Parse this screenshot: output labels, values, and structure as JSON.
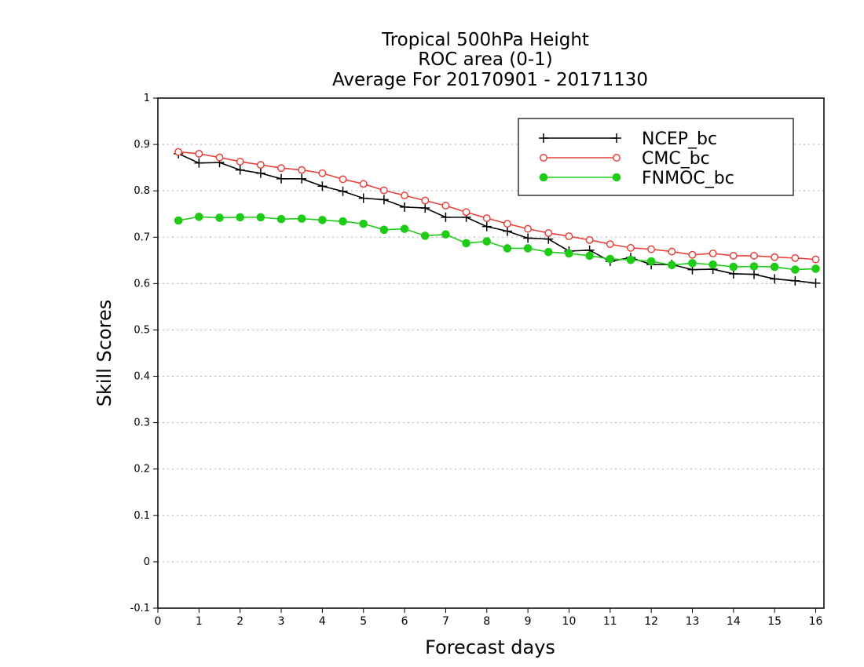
{
  "chart_data": {
    "type": "line",
    "title_lines": [
      "Tropical 500hPa Height",
      "ROC area (0-1)",
      "Average For 20170901 - 20171130"
    ],
    "xlabel": "Forecast days",
    "ylabel": "Skill Scores",
    "xlim": [
      0,
      16.2
    ],
    "ylim": [
      -0.1,
      1
    ],
    "xticks": [
      "0",
      "1",
      "2",
      "3",
      "4",
      "5",
      "6",
      "7",
      "8",
      "9",
      "10",
      "11",
      "12",
      "13",
      "14",
      "15",
      "16"
    ],
    "yticks": [
      "-0.1",
      "0",
      "0.1",
      "0.2",
      "0.3",
      "0.4",
      "0.5",
      "0.6",
      "0.7",
      "0.8",
      "0.9",
      "1"
    ],
    "grid": "horizontal dotted",
    "legend_position": "top-right",
    "x": [
      0.5,
      1,
      1.5,
      2,
      2.5,
      3,
      3.5,
      4,
      4.5,
      5,
      5.5,
      6,
      6.5,
      7,
      7.5,
      8,
      8.5,
      9,
      9.5,
      10,
      10.5,
      11,
      11.5,
      12,
      12.5,
      13,
      13.5,
      14,
      14.5,
      15,
      15.5,
      16
    ],
    "series": [
      {
        "name": "NCEP_bc",
        "color": "#000000",
        "marker": "plus",
        "values": [
          0.88,
          0.86,
          0.861,
          0.845,
          0.838,
          0.826,
          0.826,
          0.81,
          0.799,
          0.784,
          0.781,
          0.765,
          0.763,
          0.743,
          0.743,
          0.723,
          0.713,
          0.698,
          0.696,
          0.67,
          0.672,
          0.648,
          0.656,
          0.641,
          0.641,
          0.63,
          0.631,
          0.621,
          0.62,
          0.61,
          0.606,
          0.601
        ]
      },
      {
        "name": "CMC_bc",
        "color": "#e8413c",
        "marker": "open-circle",
        "values": [
          0.884,
          0.88,
          0.872,
          0.863,
          0.856,
          0.849,
          0.845,
          0.838,
          0.825,
          0.815,
          0.801,
          0.79,
          0.779,
          0.768,
          0.754,
          0.741,
          0.729,
          0.718,
          0.709,
          0.702,
          0.694,
          0.685,
          0.677,
          0.674,
          0.669,
          0.662,
          0.665,
          0.66,
          0.66,
          0.657,
          0.655,
          0.652
        ]
      },
      {
        "name": "FNMOC_bc",
        "color": "#1ecb16",
        "marker": "filled-circle",
        "values": [
          0.736,
          0.744,
          0.742,
          0.743,
          0.743,
          0.739,
          0.74,
          0.737,
          0.734,
          0.729,
          0.716,
          0.718,
          0.703,
          0.706,
          0.687,
          0.691,
          0.676,
          0.676,
          0.668,
          0.665,
          0.66,
          0.653,
          0.651,
          0.648,
          0.64,
          0.644,
          0.641,
          0.636,
          0.637,
          0.636,
          0.63,
          0.632
        ]
      }
    ]
  }
}
